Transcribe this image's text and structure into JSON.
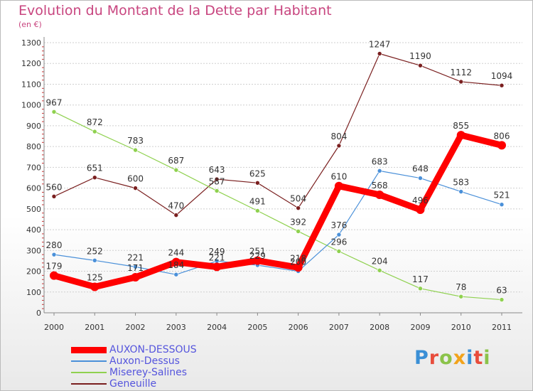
{
  "chart_data": {
    "type": "line",
    "title": "Evolution du Montant de la Dette par Habitant",
    "subtitle": "(en €)",
    "categories": [
      "2000",
      "2001",
      "2002",
      "2003",
      "2004",
      "2005",
      "2006",
      "2007",
      "2008",
      "2009",
      "2010",
      "2011"
    ],
    "ylim": [
      0,
      1300
    ],
    "yticks": [
      0,
      100,
      200,
      300,
      400,
      500,
      600,
      700,
      800,
      900,
      1000,
      1100,
      1200,
      1300
    ],
    "grid": "horizontal",
    "legend_position": "bottom-left",
    "series": [
      {
        "name": "AUXON-DESSOUS",
        "color": "#ff0000",
        "values": [
          179,
          125,
          171,
          244,
          221,
          251,
          218,
          610,
          568,
          496,
          855,
          806
        ]
      },
      {
        "name": "Auxon-Dessus",
        "color": "#4a90d9",
        "values": [
          280,
          252,
          221,
          184,
          249,
          229,
          200,
          376,
          683,
          648,
          583,
          521
        ]
      },
      {
        "name": "Miserey-Salines",
        "color": "#8fd14f",
        "values": [
          967,
          872,
          783,
          687,
          587,
          491,
          392,
          296,
          204,
          117,
          78,
          63
        ]
      },
      {
        "name": "Geneuille",
        "color": "#7a1f1f",
        "values": [
          560,
          651,
          600,
          470,
          643,
          625,
          504,
          804,
          1247,
          1190,
          1112,
          1094
        ]
      }
    ]
  },
  "logo": {
    "text": "Proxiti"
  }
}
